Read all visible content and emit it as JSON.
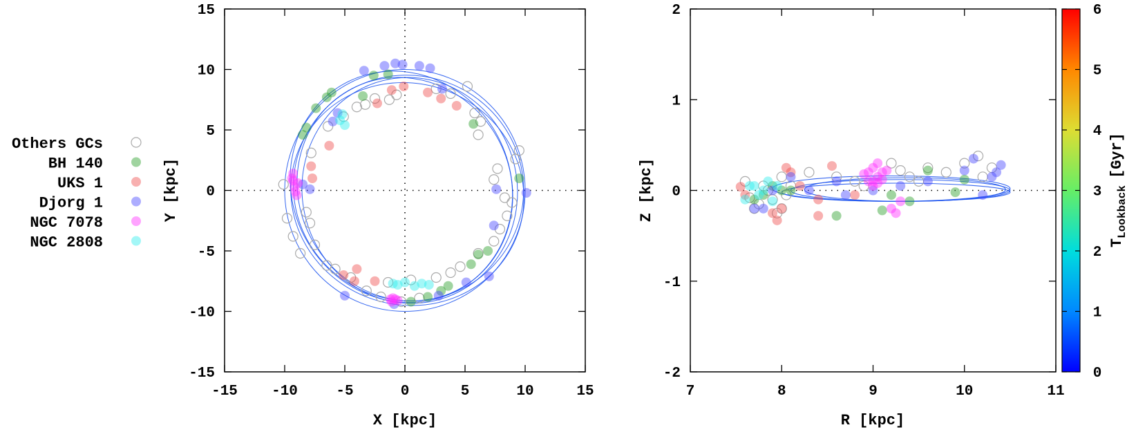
{
  "chart_data": [
    {
      "type": "scatter",
      "title": "",
      "xlabel": "X [kpc]",
      "ylabel": "Y [kpc]",
      "xlim": [
        -15,
        15
      ],
      "ylim": [
        -15,
        15
      ],
      "xticks": [
        "-15",
        "-10",
        "-5",
        "0",
        "5",
        "10",
        "15"
      ],
      "yticks": [
        "-15",
        "-10",
        "-5",
        "0",
        "5",
        "10",
        "15"
      ],
      "zero_lines": true,
      "orbits": [
        {
          "cx": 0.0,
          "cy": 0.0,
          "rx": 10.0,
          "ry": 10.0,
          "rot": 0
        },
        {
          "cx": 0.3,
          "cy": 0.2,
          "rx": 9.6,
          "ry": 9.3,
          "rot": 20
        },
        {
          "cx": -0.3,
          "cy": 0.3,
          "rx": 9.8,
          "ry": 9.0,
          "rot": 60
        },
        {
          "cx": 0.2,
          "cy": -0.3,
          "rx": 9.2,
          "ry": 9.7,
          "rot": 110
        },
        {
          "cx": 0.0,
          "cy": 0.1,
          "rx": 8.8,
          "ry": 9.4,
          "rot": 150
        },
        {
          "cx": 0.4,
          "cy": 0.0,
          "rx": 9.4,
          "ry": 8.9,
          "rot": 80
        }
      ],
      "series": [
        {
          "name": "Others GCs",
          "color": "#aaaaaa",
          "filled": false,
          "points": [
            [
              -10.1,
              0.5
            ],
            [
              -9.8,
              -2.3
            ],
            [
              -9.3,
              -3.8
            ],
            [
              -8.7,
              -5.2
            ],
            [
              -7.9,
              -2.7
            ],
            [
              -7.5,
              -4.5
            ],
            [
              -5.8,
              -6.5
            ],
            [
              -4.5,
              -7.2
            ],
            [
              -3.2,
              -8.3
            ],
            [
              -2.0,
              -8.8
            ],
            [
              -1.4,
              -7.6
            ],
            [
              0.5,
              -7.4
            ],
            [
              2.6,
              -7.2
            ],
            [
              3.8,
              -6.8
            ],
            [
              4.6,
              -6.3
            ],
            [
              6.1,
              -5.2
            ],
            [
              7.4,
              -4.2
            ],
            [
              7.9,
              -3.2
            ],
            [
              8.5,
              -2.1
            ],
            [
              8.9,
              -1.0
            ],
            [
              7.4,
              0.9
            ],
            [
              7.7,
              1.8
            ],
            [
              9.2,
              2.6
            ],
            [
              9.5,
              3.3
            ],
            [
              6.1,
              4.6
            ],
            [
              6.3,
              5.7
            ],
            [
              5.8,
              6.4
            ],
            [
              5.2,
              8.6
            ],
            [
              3.8,
              8.0
            ],
            [
              2.6,
              8.4
            ],
            [
              -0.7,
              7.9
            ],
            [
              -1.3,
              7.5
            ],
            [
              -2.5,
              7.6
            ],
            [
              -4.0,
              6.9
            ],
            [
              -5.1,
              6.1
            ],
            [
              -6.4,
              5.3
            ],
            [
              -3.3,
              7.1
            ],
            [
              -8.2,
              -1.8
            ],
            [
              -7.8,
              3.1
            ],
            [
              8.3,
              -0.6
            ],
            [
              -6.5,
              -6.2
            ],
            [
              -0.3,
              -9.2
            ],
            [
              1.2,
              -8.9
            ]
          ]
        },
        {
          "name": "BH 140",
          "color": "#2ca02c",
          "points": [
            [
              -8.5,
              4.6
            ],
            [
              -8.2,
              5.2
            ],
            [
              -7.4,
              6.8
            ],
            [
              -6.5,
              7.7
            ],
            [
              -6.1,
              8.1
            ],
            [
              -2.6,
              9.5
            ],
            [
              -1.4,
              9.6
            ],
            [
              0.5,
              -9.2
            ],
            [
              1.9,
              -8.8
            ],
            [
              3.0,
              -8.3
            ],
            [
              3.6,
              -7.9
            ],
            [
              5.5,
              -6.1
            ],
            [
              6.1,
              -5.3
            ],
            [
              6.9,
              -5.0
            ],
            [
              9.5,
              1.0
            ],
            [
              5.7,
              5.5
            ],
            [
              -3.5,
              7.8
            ]
          ]
        },
        {
          "name": "UKS 1",
          "color": "#f05050",
          "points": [
            [
              -6.3,
              3.7
            ],
            [
              -7.8,
              2.0
            ],
            [
              -7.7,
              1.0
            ],
            [
              -5.1,
              -7.0
            ],
            [
              -4.2,
              -7.5
            ],
            [
              -2.5,
              -7.5
            ],
            [
              -4.0,
              -6.5
            ],
            [
              -0.1,
              8.6
            ],
            [
              -1.1,
              8.3
            ],
            [
              -2.3,
              7.2
            ],
            [
              3.0,
              7.6
            ],
            [
              4.3,
              7.0
            ],
            [
              1.9,
              8.1
            ]
          ]
        },
        {
          "name": "Djorg 1",
          "color": "#4a4aff",
          "points": [
            [
              -3.4,
              9.9
            ],
            [
              -1.7,
              10.3
            ],
            [
              -0.8,
              10.5
            ],
            [
              -0.2,
              10.4
            ],
            [
              1.2,
              10.3
            ],
            [
              2.1,
              10.1
            ],
            [
              7.6,
              0.1
            ],
            [
              10.1,
              -0.2
            ],
            [
              7.4,
              -2.9
            ],
            [
              7.0,
              -7.1
            ],
            [
              5.1,
              -7.6
            ],
            [
              2.8,
              -8.7
            ],
            [
              -0.9,
              -9.4
            ],
            [
              -5.0,
              -8.7
            ],
            [
              -6.0,
              5.7
            ],
            [
              -5.6,
              6.4
            ],
            [
              -7.9,
              0.1
            ],
            [
              -8.5,
              0.5
            ],
            [
              3.1,
              8.4
            ]
          ]
        },
        {
          "name": "NGC 7078",
          "color": "#ff33ff",
          "points": [
            [
              -9.3,
              1.4
            ],
            [
              -9.3,
              0.8
            ],
            [
              -9.2,
              0.3
            ],
            [
              -9.1,
              -0.1
            ],
            [
              -9.0,
              -0.4
            ],
            [
              -9.4,
              1.0
            ],
            [
              -8.9,
              0.6
            ],
            [
              -1.2,
              -9.0
            ],
            [
              -1.0,
              -8.9
            ],
            [
              -0.8,
              -9.0
            ],
            [
              -0.6,
              -9.1
            ],
            [
              -1.1,
              -9.2
            ]
          ]
        },
        {
          "name": "NGC 2808",
          "color": "#33eeee",
          "points": [
            [
              -5.4,
              5.8
            ],
            [
              -5.2,
              6.3
            ],
            [
              -5.0,
              5.4
            ],
            [
              -0.6,
              -7.8
            ],
            [
              0.0,
              -7.6
            ],
            [
              0.8,
              -7.9
            ],
            [
              1.4,
              -7.7
            ],
            [
              2.0,
              -7.8
            ],
            [
              -1.0,
              -7.7
            ]
          ]
        }
      ]
    },
    {
      "type": "scatter",
      "title": "",
      "xlabel": "R [kpc]",
      "ylabel": "Z [kpc]",
      "xlim": [
        7,
        11
      ],
      "ylim": [
        -2,
        2
      ],
      "xticks": [
        "7",
        "8",
        "9",
        "10",
        "11"
      ],
      "yticks": [
        "-2",
        "-1",
        "0",
        "1",
        "2"
      ],
      "zero_line": true,
      "orbits": [
        {
          "cx": 9.2,
          "cy": 0.02,
          "rx": 1.3,
          "ry": 0.14
        },
        {
          "cx": 9.3,
          "cy": 0.0,
          "rx": 1.2,
          "ry": 0.12
        },
        {
          "cx": 9.35,
          "cy": 0.01,
          "rx": 1.1,
          "ry": 0.13
        },
        {
          "cx": 9.25,
          "cy": -0.02,
          "rx": 1.25,
          "ry": 0.1
        }
      ],
      "series": [
        {
          "name": "Others GCs",
          "color": "#aaaaaa",
          "filled": false,
          "points": [
            [
              7.6,
              0.1
            ],
            [
              7.7,
              -0.2
            ],
            [
              7.8,
              0.05
            ],
            [
              7.9,
              -0.1
            ],
            [
              7.95,
              -0.25
            ],
            [
              8.0,
              0.15
            ],
            [
              8.05,
              -0.05
            ],
            [
              8.1,
              0.05
            ],
            [
              7.75,
              -0.15
            ],
            [
              7.85,
              0.0
            ],
            [
              8.3,
              0.2
            ],
            [
              8.6,
              0.15
            ],
            [
              8.8,
              0.1
            ],
            [
              9.2,
              0.3
            ],
            [
              9.4,
              0.15
            ],
            [
              9.6,
              0.25
            ],
            [
              9.8,
              0.2
            ],
            [
              10.0,
              0.3
            ],
            [
              10.15,
              0.38
            ],
            [
              10.3,
              0.25
            ],
            [
              10.2,
              0.15
            ],
            [
              9.5,
              0.1
            ],
            [
              9.3,
              0.22
            ],
            [
              8.9,
              0.05
            ],
            [
              7.65,
              -0.08
            ],
            [
              8.0,
              -0.2
            ]
          ]
        },
        {
          "name": "BH 140",
          "color": "#2ca02c",
          "points": [
            [
              7.8,
              -0.05
            ],
            [
              7.9,
              0.05
            ],
            [
              8.0,
              0.0
            ],
            [
              7.7,
              -0.1
            ],
            [
              8.6,
              -0.28
            ],
            [
              9.1,
              -0.22
            ],
            [
              9.4,
              -0.12
            ],
            [
              9.9,
              -0.02
            ],
            [
              10.0,
              0.12
            ],
            [
              9.6,
              0.22
            ],
            [
              9.2,
              -0.05
            ],
            [
              8.1,
              0.0
            ]
          ]
        },
        {
          "name": "UKS 1",
          "color": "#f05050",
          "points": [
            [
              7.55,
              0.04
            ],
            [
              7.6,
              -0.05
            ],
            [
              7.9,
              -0.25
            ],
            [
              7.95,
              -0.33
            ],
            [
              8.0,
              -0.2
            ],
            [
              8.05,
              0.25
            ],
            [
              8.1,
              0.2
            ],
            [
              8.4,
              -0.28
            ],
            [
              8.4,
              -0.1
            ],
            [
              8.55,
              0.27
            ],
            [
              8.8,
              -0.05
            ],
            [
              8.2,
              0.05
            ]
          ]
        },
        {
          "name": "Djorg 1",
          "color": "#4a4aff",
          "points": [
            [
              7.7,
              -0.2
            ],
            [
              7.8,
              -0.2
            ],
            [
              7.9,
              0.0
            ],
            [
              8.1,
              0.15
            ],
            [
              8.3,
              0.0
            ],
            [
              8.6,
              0.1
            ],
            [
              9.3,
              0.05
            ],
            [
              9.6,
              0.1
            ],
            [
              10.0,
              0.22
            ],
            [
              10.1,
              0.35
            ],
            [
              10.3,
              0.15
            ],
            [
              10.35,
              0.2
            ],
            [
              10.4,
              0.28
            ],
            [
              10.2,
              -0.05
            ],
            [
              9.0,
              0.0
            ],
            [
              8.7,
              -0.05
            ]
          ]
        },
        {
          "name": "NGC 7078",
          "color": "#ff33ff",
          "points": [
            [
              8.95,
              0.2
            ],
            [
              9.0,
              0.25
            ],
            [
              9.05,
              0.15
            ],
            [
              9.1,
              0.2
            ],
            [
              9.0,
              0.1
            ],
            [
              8.95,
              0.1
            ],
            [
              9.05,
              0.3
            ],
            [
              9.1,
              0.12
            ],
            [
              8.9,
              0.18
            ],
            [
              9.15,
              0.22
            ],
            [
              9.0,
              0.05
            ],
            [
              9.05,
              0.08
            ],
            [
              9.2,
              -0.2
            ],
            [
              9.3,
              -0.12
            ],
            [
              9.25,
              -0.25
            ]
          ]
        },
        {
          "name": "NGC 2808",
          "color": "#33eeee",
          "points": [
            [
              7.65,
              0.05
            ],
            [
              7.7,
              0.05
            ],
            [
              7.75,
              -0.05
            ],
            [
              7.85,
              0.1
            ],
            [
              7.9,
              -0.12
            ],
            [
              7.6,
              -0.1
            ],
            [
              7.8,
              0.0
            ],
            [
              7.95,
              0.05
            ]
          ]
        }
      ],
      "colorbar": {
        "label": "T",
        "label_subscript": "Lookback",
        "label_unit": "[Gyr]",
        "range": [
          0,
          6
        ],
        "ticks": [
          "0",
          "1",
          "2",
          "3",
          "4",
          "5",
          "6"
        ],
        "colors": [
          "#0000ff",
          "#0088ff",
          "#00dddd",
          "#66ee66",
          "#dddd33",
          "#ff8800",
          "#ff0000"
        ]
      }
    }
  ],
  "legend": [
    {
      "label": "Others GCs",
      "color": "#aaaaaa",
      "filled": false
    },
    {
      "label": "BH 140",
      "color": "#2ca02c",
      "filled": true
    },
    {
      "label": "UKS 1",
      "color": "#f05050",
      "filled": true
    },
    {
      "label": "Djorg 1",
      "color": "#4a4aff",
      "filled": true
    },
    {
      "label": "NGC 7078",
      "color": "#ff33ff",
      "filled": true
    },
    {
      "label": "NGC 2808",
      "color": "#33eeee",
      "filled": true
    }
  ],
  "orbit_color": "#1f55ee"
}
